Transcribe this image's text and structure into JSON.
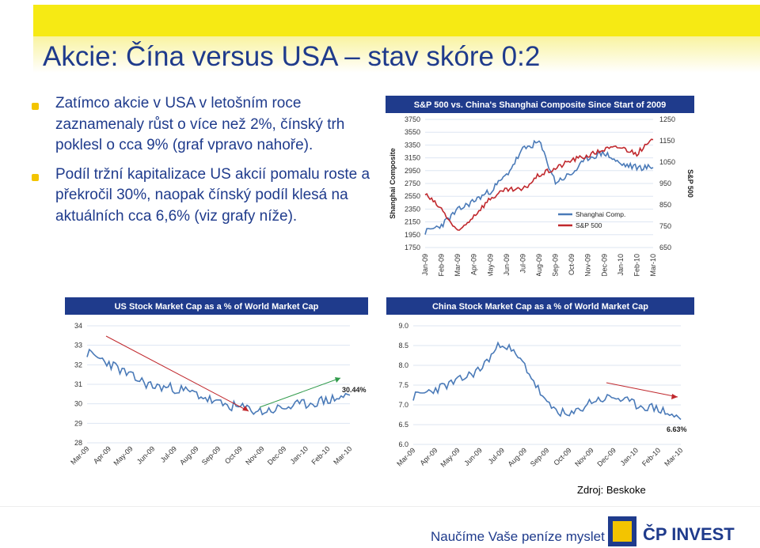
{
  "page": {
    "title": "Akcie: Čína versus USA – stav skóre 0:2",
    "bullets": [
      "Zatímco akcie v USA v letošním roce zaznamenaly růst o více než 2%, čínský trh poklesl o cca 9% (graf vpravo nahoře).",
      "Podíl tržní kapitalizace US akcií pomalu roste a překročil 30%, naopak čínský podíl klesá na aktuálních cca 6,6% (viz grafy níže)."
    ],
    "source": "Zdroj: Beskoke",
    "tagline": "Naučíme Vaše peníze myslet",
    "brand": "ČP INVEST"
  },
  "colors": {
    "title_blue": "#1f3b8c",
    "yellow": "#f6ea14",
    "bullet_yellow": "#f3c400",
    "chart_header": "#1f3b8c",
    "blue_series": "#4a7ab8",
    "red_series": "#c0282d",
    "green_trend": "#2f9a4a",
    "grid": "#dde6f2"
  },
  "chart_data": [
    {
      "type": "line",
      "title": "S&P 500 vs. China's Shanghai Composite Since Start of 2009",
      "ylabel": "Shanghai Composite",
      "y2label": "S&P 500",
      "categories": [
        "Jan-09",
        "Feb-09",
        "Mar-09",
        "Apr-09",
        "May-09",
        "Jun-09",
        "Jul-09",
        "Aug-09",
        "Sep-09",
        "Oct-09",
        "Nov-09",
        "Dec-09",
        "Jan-10",
        "Feb-10",
        "Mar-10"
      ],
      "ylim": [
        1750,
        3750
      ],
      "yticks": [
        1750,
        1950,
        2150,
        2350,
        2550,
        2750,
        2950,
        3150,
        3350,
        3550,
        3750
      ],
      "y2lim": [
        650,
        1250
      ],
      "y2ticks": [
        650,
        750,
        850,
        950,
        1050,
        1150,
        1250
      ],
      "series": [
        {
          "name": "Shanghai Comp.",
          "axis": "left",
          "color": "#4a7ab8",
          "values": [
            1990,
            2100,
            2330,
            2480,
            2630,
            2880,
            3280,
            3400,
            2770,
            2900,
            3150,
            3230,
            3050,
            3000,
            3000
          ]
        },
        {
          "name": "S&P 500",
          "axis": "right",
          "color": "#c0282d",
          "values": [
            900,
            830,
            720,
            800,
            880,
            920,
            920,
            990,
            1020,
            1060,
            1080,
            1110,
            1120,
            1090,
            1155
          ]
        }
      ],
      "legend": "center-right"
    },
    {
      "type": "line",
      "title": "US Stock Market Cap as a % of World Market Cap",
      "categories": [
        "Mar-09",
        "Apr-09",
        "May-09",
        "Jun-09",
        "Jul-09",
        "Aug-09",
        "Sep-09",
        "Oct-09",
        "Nov-09",
        "Dec-09",
        "Jan-10",
        "Feb-10",
        "Mar-10"
      ],
      "ylim": [
        28,
        34
      ],
      "yticks": [
        28,
        29,
        30,
        31,
        32,
        33,
        34
      ],
      "series": [
        {
          "name": "",
          "color": "#4a7ab8",
          "values": [
            32.6,
            32.1,
            31.4,
            30.9,
            30.8,
            30.5,
            30.0,
            29.8,
            29.6,
            29.8,
            30.0,
            30.2,
            30.44
          ]
        }
      ],
      "annotations": [
        "30.44%"
      ]
    },
    {
      "type": "line",
      "title": "China Stock Market Cap as a % of World Market Cap",
      "categories": [
        "Mar-09",
        "Apr-09",
        "May-09",
        "Jun-09",
        "Jul-09",
        "Aug-09",
        "Sep-09",
        "Oct-09",
        "Nov-09",
        "Dec-09",
        "Jan-10",
        "Feb-10",
        "Mar-10"
      ],
      "ylim": [
        6.0,
        9.0
      ],
      "yticks": [
        6.0,
        6.5,
        7.0,
        7.5,
        8.0,
        8.5,
        9.0
      ],
      "series": [
        {
          "name": "",
          "color": "#4a7ab8",
          "values": [
            7.2,
            7.4,
            7.6,
            7.9,
            8.6,
            8.0,
            7.0,
            6.7,
            7.1,
            7.2,
            7.0,
            6.9,
            6.63
          ]
        }
      ],
      "annotations": [
        "6.63%"
      ]
    }
  ]
}
